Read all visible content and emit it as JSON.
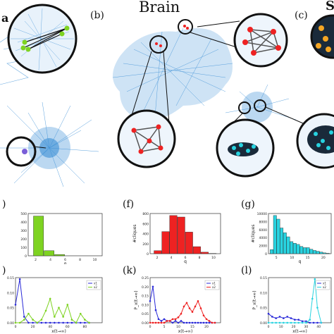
{
  "labels": {
    "title_brain": "Brain",
    "a": "a",
    "b": "(b)",
    "c": "(c)",
    "s": "S",
    "e": ")",
    "f": "(f)",
    "g": "(g)",
    "j": ")",
    "k": "(k)",
    "l": "(l)"
  },
  "colors": {
    "network": "#3b8fd6",
    "green": "#7ed321",
    "red": "#ee2222",
    "cyan": "#28d3e0",
    "orange": "#f5a623",
    "blue_line": "#2a2ad8"
  },
  "chart_data": [
    {
      "type": "bar",
      "panel": "e",
      "xlabel": "q",
      "ylabel": "",
      "categories": [
        "2",
        "3",
        "4",
        "5",
        "6",
        "7"
      ],
      "values": [
        470,
        60,
        15,
        0,
        0,
        0
      ],
      "ylim": [
        0,
        500
      ],
      "ytick_labels": [
        "0",
        "100",
        "200",
        "300",
        "400",
        "500"
      ],
      "xtick_labels": [
        "2",
        "4",
        "6",
        "8",
        "10"
      ]
    },
    {
      "type": "bar",
      "panel": "f",
      "xlabel": "q",
      "ylabel": "#cliques",
      "categories": [
        "2",
        "3",
        "4",
        "5",
        "6",
        "7",
        "8",
        "9"
      ],
      "values": [
        60,
        440,
        760,
        730,
        430,
        140,
        30,
        5
      ],
      "ylim": [
        0,
        800
      ],
      "ytick_labels": [
        "0",
        "200",
        "400",
        "600",
        "800"
      ],
      "xtick_labels": [
        "2",
        "4",
        "6",
        "8",
        "10"
      ]
    },
    {
      "type": "bar",
      "panel": "g",
      "xlabel": "q",
      "ylabel": "#cliques",
      "categories": [
        "3",
        "4",
        "5",
        "6",
        "7",
        "8",
        "9",
        "10",
        "11",
        "12",
        "13",
        "14",
        "15",
        "16",
        "17",
        "18",
        "19",
        "20"
      ],
      "values": [
        1000,
        9500,
        8600,
        6400,
        5200,
        4200,
        3000,
        2600,
        2300,
        1800,
        1500,
        1500,
        1100,
        800,
        600,
        400,
        200,
        100
      ],
      "ylim": [
        0,
        10000
      ],
      "ytick_labels": [
        "0",
        "2000",
        "4000",
        "6000",
        "8000",
        "10000"
      ],
      "xtick_labels": [
        "5",
        "10",
        "15",
        "20"
      ]
    },
    {
      "type": "line",
      "panel": "j",
      "xlabel": "x(t→∞)",
      "ylabel": "",
      "xlim": [
        0,
        100
      ],
      "ylim": [
        0,
        0.15
      ],
      "ytick_labels": [
        "0.00",
        "0.05",
        "0.10",
        "0.15"
      ],
      "xtick_labels": [
        "0",
        "20",
        "40",
        "60",
        "80"
      ],
      "legend": [
        "x1",
        "x2"
      ],
      "series": [
        {
          "name": "x1",
          "x": [
            0,
            5,
            10,
            15,
            20,
            25,
            30,
            35,
            40,
            45,
            50,
            55,
            60,
            65,
            70,
            75,
            80,
            85
          ],
          "y": [
            0.06,
            0.145,
            0.02,
            0,
            0,
            0,
            0,
            0,
            0,
            0,
            0,
            0,
            0,
            0,
            0,
            0,
            0,
            0
          ]
        },
        {
          "name": "x2",
          "x": [
            0,
            5,
            10,
            15,
            20,
            25,
            30,
            35,
            40,
            45,
            50,
            55,
            60,
            65,
            70,
            75,
            80,
            85
          ],
          "y": [
            0,
            0,
            0.01,
            0.03,
            0.01,
            0.0,
            0.01,
            0.04,
            0.08,
            0.02,
            0.05,
            0.02,
            0.06,
            0.01,
            0.0,
            0.03,
            0.01,
            0.0
          ]
        }
      ]
    },
    {
      "type": "line",
      "panel": "k",
      "xlabel": "x(t→∞)",
      "ylabel": "P_x(t→∞)",
      "xlim": [
        0,
        25
      ],
      "ylim": [
        0,
        0.25
      ],
      "ytick_labels": [
        "0.00",
        "0.05",
        "0.10",
        "0.15",
        "0.20",
        "0.25"
      ],
      "xtick_labels": [
        "0",
        "5",
        "10",
        "15",
        "20"
      ],
      "legend": [
        "x1",
        "x2"
      ],
      "series": [
        {
          "name": "x1",
          "x": [
            0,
            1,
            2,
            3,
            4,
            5,
            6,
            7,
            8,
            9,
            10,
            11,
            12,
            13,
            14,
            15,
            16,
            17,
            18,
            19,
            20,
            21,
            22,
            23
          ],
          "y": [
            0.12,
            0.2,
            0.07,
            0.02,
            0.01,
            0.02,
            0.01,
            0.01,
            0.0,
            0.01,
            0.0,
            0.01,
            0.0,
            0,
            0,
            0,
            0,
            0,
            0,
            0,
            0,
            0,
            0,
            0
          ]
        },
        {
          "name": "x2",
          "x": [
            0,
            1,
            2,
            3,
            4,
            5,
            6,
            7,
            8,
            9,
            10,
            11,
            12,
            13,
            14,
            15,
            16,
            17,
            18,
            19,
            20,
            21,
            22,
            23
          ],
          "y": [
            0,
            0,
            0,
            0,
            0,
            0,
            0.01,
            0.01,
            0.02,
            0.02,
            0.03,
            0.05,
            0.09,
            0.11,
            0.08,
            0.06,
            0.09,
            0.12,
            0.08,
            0.04,
            0.02,
            0.01,
            0,
            0
          ]
        }
      ]
    },
    {
      "type": "line",
      "panel": "l",
      "xlabel": "x(t→∞)",
      "ylabel": "P_x(t→∞)",
      "xlim": [
        0,
        50
      ],
      "ylim": [
        0,
        0.15
      ],
      "ytick_labels": [
        "0.00",
        "0.05",
        "0.10",
        "0.15"
      ],
      "xtick_labels": [
        "0",
        "10",
        "20",
        "30",
        "40"
      ],
      "legend": [
        "x1",
        "x2"
      ],
      "series": [
        {
          "name": "x1",
          "x": [
            0,
            3,
            6,
            9,
            12,
            15,
            18,
            21,
            24,
            27,
            30,
            33,
            36,
            39,
            42
          ],
          "y": [
            0.03,
            0.02,
            0.015,
            0.02,
            0.015,
            0.02,
            0.015,
            0.01,
            0.01,
            0.005,
            0.005,
            0,
            0,
            0,
            0
          ]
        },
        {
          "name": "x2",
          "x": [
            0,
            3,
            6,
            9,
            12,
            15,
            18,
            21,
            24,
            27,
            30,
            33,
            35,
            37,
            39,
            42
          ],
          "y": [
            0,
            0,
            0,
            0,
            0,
            0,
            0,
            0,
            0,
            0,
            0,
            0.01,
            0.08,
            0.145,
            0.05,
            0
          ]
        }
      ]
    }
  ]
}
